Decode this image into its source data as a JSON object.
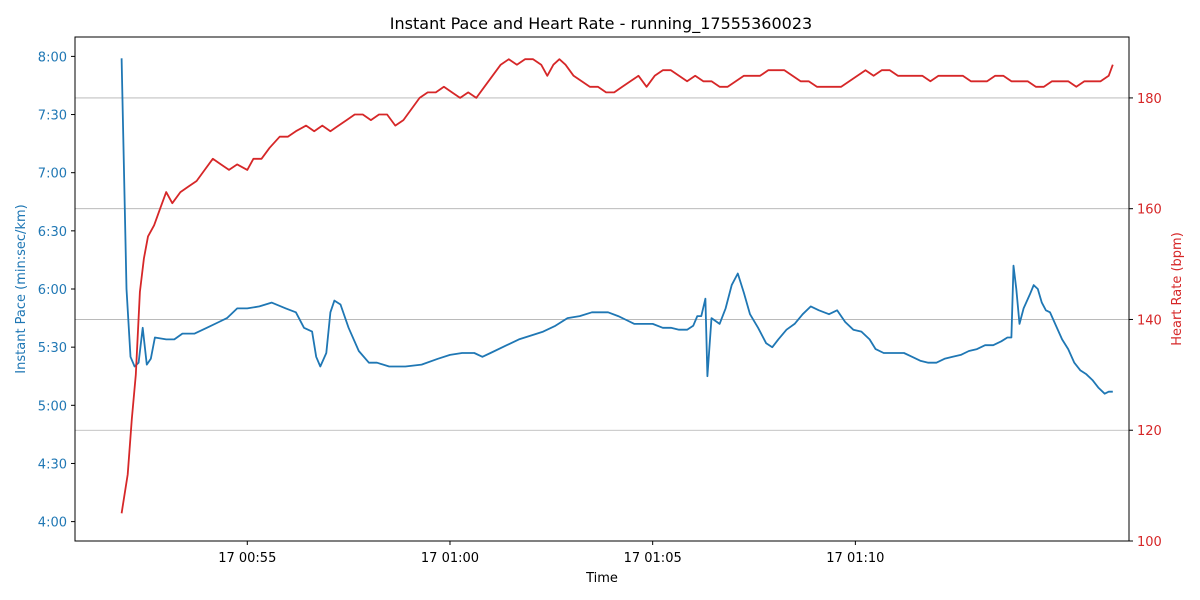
{
  "chart_data": {
    "type": "line",
    "title": "Instant Pace and Heart Rate - running_17555360023",
    "xlabel": "Time",
    "x_ticks": [
      "17 00:55",
      "17 01:00",
      "17 01:05",
      "17 01:10"
    ],
    "y_left": {
      "label": "Instant Pace (min:sec/km)",
      "ticks": [
        "4:00",
        "4:30",
        "5:00",
        "5:30",
        "6:00",
        "6:30",
        "7:00",
        "7:30",
        "8:00"
      ],
      "range_sec": [
        230,
        490
      ]
    },
    "y_right": {
      "label": "Heart Rate (bpm)",
      "ticks": [
        "100",
        "120",
        "140",
        "160",
        "180"
      ],
      "range": [
        100,
        191
      ]
    },
    "grid": "horizontal lines at right-axis ticks",
    "x_range_min": [
      -4.25,
      21.75
    ],
    "colors": {
      "pace": "#1f77b4",
      "heart_rate": "#d62728"
    },
    "series": [
      {
        "name": "Instant Pace",
        "axis": "left",
        "unit": "sec/km",
        "points": [
          [
            -3.1,
            479
          ],
          [
            -2.98,
            360
          ],
          [
            -2.88,
            325
          ],
          [
            -2.78,
            320
          ],
          [
            -2.68,
            322
          ],
          [
            -2.58,
            340
          ],
          [
            -2.48,
            321
          ],
          [
            -2.38,
            324
          ],
          [
            -2.28,
            335
          ],
          [
            -2.0,
            334
          ],
          [
            -1.8,
            334
          ],
          [
            -1.6,
            337
          ],
          [
            -1.3,
            337
          ],
          [
            -1.0,
            340
          ],
          [
            -0.7,
            343
          ],
          [
            -0.5,
            345
          ],
          [
            -0.25,
            350
          ],
          [
            0.0,
            350
          ],
          [
            0.3,
            351
          ],
          [
            0.6,
            353
          ],
          [
            0.95,
            350
          ],
          [
            1.2,
            348
          ],
          [
            1.4,
            340
          ],
          [
            1.6,
            338
          ],
          [
            1.7,
            325
          ],
          [
            1.8,
            320
          ],
          [
            1.95,
            327
          ],
          [
            2.05,
            348
          ],
          [
            2.15,
            354
          ],
          [
            2.3,
            352
          ],
          [
            2.5,
            340
          ],
          [
            2.75,
            328
          ],
          [
            3.0,
            322
          ],
          [
            3.2,
            322
          ],
          [
            3.5,
            320
          ],
          [
            3.9,
            320
          ],
          [
            4.3,
            321
          ],
          [
            4.7,
            324
          ],
          [
            5.0,
            326
          ],
          [
            5.3,
            327
          ],
          [
            5.6,
            327
          ],
          [
            5.8,
            325
          ],
          [
            6.0,
            327
          ],
          [
            6.4,
            331
          ],
          [
            6.7,
            334
          ],
          [
            7.0,
            336
          ],
          [
            7.3,
            338
          ],
          [
            7.6,
            341
          ],
          [
            7.9,
            345
          ],
          [
            8.2,
            346
          ],
          [
            8.5,
            348
          ],
          [
            8.7,
            348
          ],
          [
            8.9,
            348
          ],
          [
            9.15,
            346
          ],
          [
            9.35,
            344
          ],
          [
            9.55,
            342
          ],
          [
            9.75,
            342
          ],
          [
            10.0,
            342
          ],
          [
            10.25,
            340
          ],
          [
            10.45,
            340
          ],
          [
            10.65,
            339
          ],
          [
            10.85,
            339
          ],
          [
            11.0,
            341
          ],
          [
            11.1,
            346
          ],
          [
            11.2,
            346
          ],
          [
            11.3,
            355
          ],
          [
            11.35,
            315
          ],
          [
            11.45,
            345
          ],
          [
            11.65,
            342
          ],
          [
            11.8,
            350
          ],
          [
            11.95,
            362
          ],
          [
            12.1,
            368
          ],
          [
            12.25,
            358
          ],
          [
            12.4,
            347
          ],
          [
            12.6,
            340
          ],
          [
            12.8,
            332
          ],
          [
            12.95,
            330
          ],
          [
            13.1,
            334
          ],
          [
            13.3,
            339
          ],
          [
            13.5,
            342
          ],
          [
            13.7,
            347
          ],
          [
            13.9,
            351
          ],
          [
            14.1,
            349
          ],
          [
            14.35,
            347
          ],
          [
            14.55,
            349
          ],
          [
            14.75,
            343
          ],
          [
            14.95,
            339
          ],
          [
            15.15,
            338
          ],
          [
            15.35,
            334
          ],
          [
            15.5,
            329
          ],
          [
            15.7,
            327
          ],
          [
            15.9,
            327
          ],
          [
            16.2,
            327
          ],
          [
            16.4,
            325
          ],
          [
            16.6,
            323
          ],
          [
            16.8,
            322
          ],
          [
            17.0,
            322
          ],
          [
            17.2,
            324
          ],
          [
            17.4,
            325
          ],
          [
            17.6,
            326
          ],
          [
            17.8,
            328
          ],
          [
            18.0,
            329
          ],
          [
            18.2,
            331
          ],
          [
            18.4,
            331
          ],
          [
            18.6,
            333
          ],
          [
            18.75,
            335
          ],
          [
            18.85,
            335
          ],
          [
            18.9,
            372
          ],
          [
            18.97,
            360
          ],
          [
            19.05,
            342
          ],
          [
            19.15,
            350
          ],
          [
            19.3,
            357
          ],
          [
            19.4,
            362
          ],
          [
            19.5,
            360
          ],
          [
            19.6,
            353
          ],
          [
            19.7,
            349
          ],
          [
            19.8,
            348
          ],
          [
            19.95,
            341
          ],
          [
            20.1,
            334
          ],
          [
            20.25,
            329
          ],
          [
            20.4,
            322
          ],
          [
            20.55,
            318
          ],
          [
            20.7,
            316
          ],
          [
            20.85,
            313
          ],
          [
            21.0,
            309
          ],
          [
            21.15,
            306
          ],
          [
            21.25,
            307
          ],
          [
            21.35,
            307
          ]
        ]
      },
      {
        "name": "Heart Rate",
        "axis": "right",
        "unit": "bpm",
        "points": [
          [
            -3.1,
            105
          ],
          [
            -2.95,
            112
          ],
          [
            -2.85,
            122
          ],
          [
            -2.75,
            130
          ],
          [
            -2.65,
            145
          ],
          [
            -2.55,
            151
          ],
          [
            -2.45,
            155
          ],
          [
            -2.3,
            157
          ],
          [
            -2.15,
            160
          ],
          [
            -2.0,
            163
          ],
          [
            -1.85,
            161
          ],
          [
            -1.65,
            163
          ],
          [
            -1.45,
            164
          ],
          [
            -1.25,
            165
          ],
          [
            -1.05,
            167
          ],
          [
            -0.85,
            169
          ],
          [
            -0.65,
            168
          ],
          [
            -0.45,
            167
          ],
          [
            -0.25,
            168
          ],
          [
            0.0,
            167
          ],
          [
            0.15,
            169
          ],
          [
            0.35,
            169
          ],
          [
            0.55,
            171
          ],
          [
            0.8,
            173
          ],
          [
            1.0,
            173
          ],
          [
            1.2,
            174
          ],
          [
            1.45,
            175
          ],
          [
            1.65,
            174
          ],
          [
            1.85,
            175
          ],
          [
            2.05,
            174
          ],
          [
            2.25,
            175
          ],
          [
            2.45,
            176
          ],
          [
            2.65,
            177
          ],
          [
            2.85,
            177
          ],
          [
            3.05,
            176
          ],
          [
            3.25,
            177
          ],
          [
            3.45,
            177
          ],
          [
            3.65,
            175
          ],
          [
            3.85,
            176
          ],
          [
            4.05,
            178
          ],
          [
            4.25,
            180
          ],
          [
            4.45,
            181
          ],
          [
            4.65,
            181
          ],
          [
            4.85,
            182
          ],
          [
            5.05,
            181
          ],
          [
            5.25,
            180
          ],
          [
            5.45,
            181
          ],
          [
            5.65,
            180
          ],
          [
            5.85,
            182
          ],
          [
            6.05,
            184
          ],
          [
            6.25,
            186
          ],
          [
            6.45,
            187
          ],
          [
            6.65,
            186
          ],
          [
            6.85,
            187
          ],
          [
            7.05,
            187
          ],
          [
            7.25,
            186
          ],
          [
            7.4,
            184
          ],
          [
            7.55,
            186
          ],
          [
            7.7,
            187
          ],
          [
            7.85,
            186
          ],
          [
            8.05,
            184
          ],
          [
            8.25,
            183
          ],
          [
            8.45,
            182
          ],
          [
            8.65,
            182
          ],
          [
            8.85,
            181
          ],
          [
            9.05,
            181
          ],
          [
            9.25,
            182
          ],
          [
            9.45,
            183
          ],
          [
            9.65,
            184
          ],
          [
            9.85,
            182
          ],
          [
            10.05,
            184
          ],
          [
            10.25,
            185
          ],
          [
            10.45,
            185
          ],
          [
            10.65,
            184
          ],
          [
            10.85,
            183
          ],
          [
            11.05,
            184
          ],
          [
            11.25,
            183
          ],
          [
            11.45,
            183
          ],
          [
            11.65,
            182
          ],
          [
            11.85,
            182
          ],
          [
            12.05,
            183
          ],
          [
            12.25,
            184
          ],
          [
            12.45,
            184
          ],
          [
            12.65,
            184
          ],
          [
            12.85,
            185
          ],
          [
            13.05,
            185
          ],
          [
            13.25,
            185
          ],
          [
            13.45,
            184
          ],
          [
            13.65,
            183
          ],
          [
            13.85,
            183
          ],
          [
            14.05,
            182
          ],
          [
            14.25,
            182
          ],
          [
            14.45,
            182
          ],
          [
            14.65,
            182
          ],
          [
            14.85,
            183
          ],
          [
            15.05,
            184
          ],
          [
            15.25,
            185
          ],
          [
            15.45,
            184
          ],
          [
            15.65,
            185
          ],
          [
            15.85,
            185
          ],
          [
            16.05,
            184
          ],
          [
            16.25,
            184
          ],
          [
            16.45,
            184
          ],
          [
            16.65,
            184
          ],
          [
            16.85,
            183
          ],
          [
            17.05,
            184
          ],
          [
            17.25,
            184
          ],
          [
            17.45,
            184
          ],
          [
            17.65,
            184
          ],
          [
            17.85,
            183
          ],
          [
            18.05,
            183
          ],
          [
            18.25,
            183
          ],
          [
            18.45,
            184
          ],
          [
            18.65,
            184
          ],
          [
            18.85,
            183
          ],
          [
            19.05,
            183
          ],
          [
            19.25,
            183
          ],
          [
            19.45,
            182
          ],
          [
            19.65,
            182
          ],
          [
            19.85,
            183
          ],
          [
            20.05,
            183
          ],
          [
            20.25,
            183
          ],
          [
            20.45,
            182
          ],
          [
            20.65,
            183
          ],
          [
            20.85,
            183
          ],
          [
            21.05,
            183
          ],
          [
            21.25,
            184
          ],
          [
            21.35,
            186
          ]
        ]
      }
    ]
  }
}
